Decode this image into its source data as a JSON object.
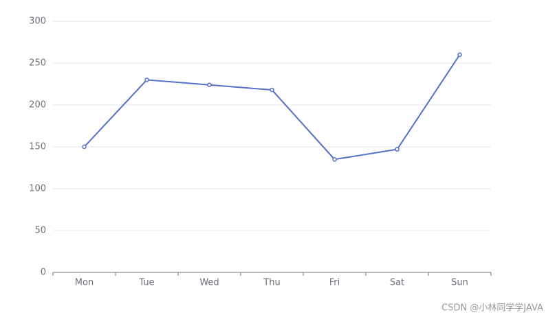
{
  "chart_data": {
    "type": "line",
    "categories": [
      "Mon",
      "Tue",
      "Wed",
      "Thu",
      "Fri",
      "Sat",
      "Sun"
    ],
    "values": [
      150,
      230,
      224,
      218,
      135,
      147,
      260
    ],
    "color": "#5470c6",
    "ylim": [
      0,
      300
    ],
    "yticks": [
      0,
      50,
      100,
      150,
      200,
      250,
      300
    ],
    "grid": true
  },
  "watermark": "CSDN @小林同学学JAVA"
}
